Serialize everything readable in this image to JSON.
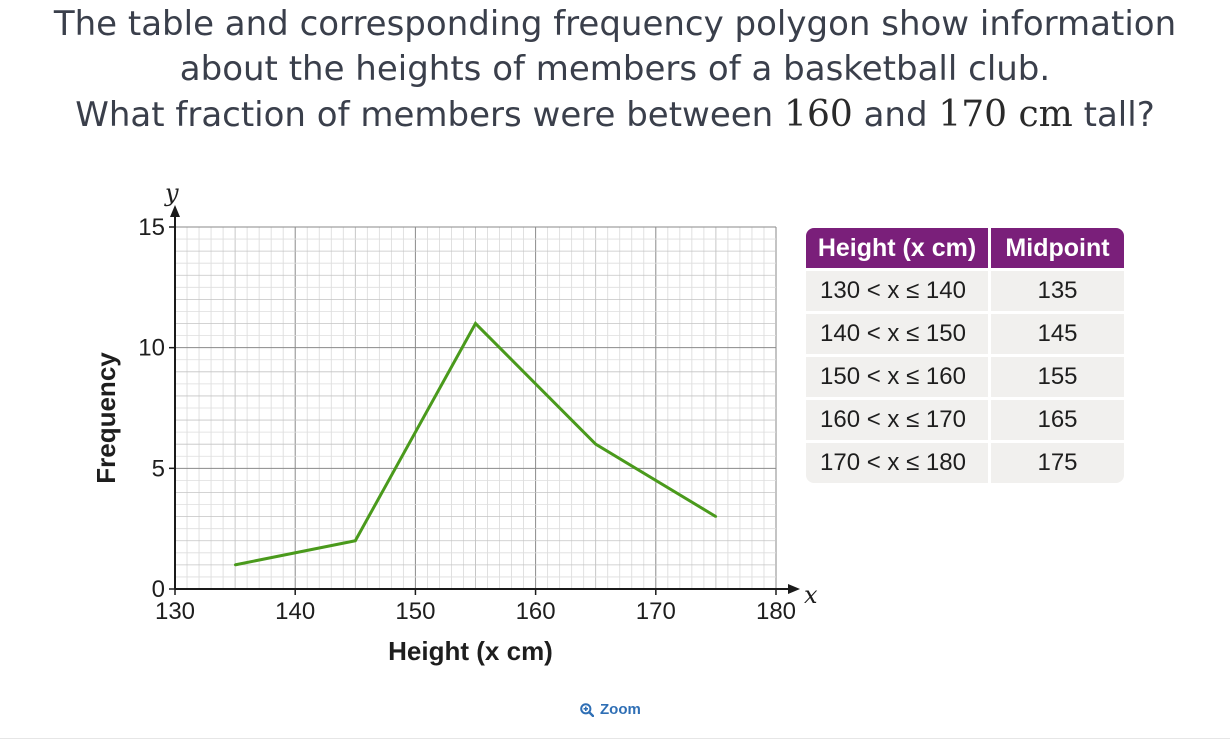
{
  "question": {
    "line1": "The table and corresponding frequency polygon show information",
    "line2": "about the heights of members of a basketball club.",
    "line3_pre": "What fraction of members were between ",
    "line3_a": "160",
    "line3_mid": " and ",
    "line3_b": "170 cm",
    "line3_post": " tall?"
  },
  "chart_data": {
    "type": "line",
    "x": [
      135,
      145,
      155,
      165,
      175
    ],
    "series": [
      {
        "values": [
          1,
          2,
          11,
          6,
          3
        ],
        "color": "#4a9a1c"
      }
    ],
    "xlabel": "Height (x cm)",
    "ylabel": "Frequency",
    "x_axis_symbol": "x",
    "y_axis_symbol": "y",
    "xlim": [
      130,
      180
    ],
    "ylim": [
      0,
      15
    ],
    "xticks": [
      130,
      140,
      150,
      160,
      170,
      180
    ],
    "yticks": [
      0,
      5,
      10,
      15
    ],
    "grid": true
  },
  "table": {
    "headers": [
      "Height (x cm)",
      "Midpoint"
    ],
    "rows": [
      {
        "range": "130 < x ≤ 140",
        "midpoint": "135"
      },
      {
        "range": "140 < x ≤ 150",
        "midpoint": "145"
      },
      {
        "range": "150 < x ≤ 160",
        "midpoint": "155"
      },
      {
        "range": "160 < x ≤ 170",
        "midpoint": "165"
      },
      {
        "range": "170 < x ≤ 180",
        "midpoint": "175"
      }
    ]
  },
  "zoom_label": "Zoom",
  "icons": {
    "zoom": "zoom-in-icon"
  }
}
